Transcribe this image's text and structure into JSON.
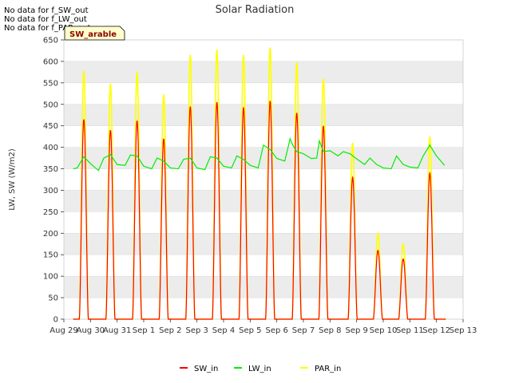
{
  "no_data_messages": [
    "No data for f_SW_out",
    "No data for f_LW_out",
    "No data for f_PAR_out"
  ],
  "badge": "SW_arable",
  "colors": {
    "SW_in": "#ff0000",
    "LW_in": "#00ee00",
    "PAR_in": "#ffff00",
    "band": "#ececec",
    "grid": "#dddddd"
  },
  "chart_data": {
    "type": "line",
    "title": "Solar Radiation",
    "xlabel": "",
    "ylabel": "LW, SW (W/m2)",
    "ylim": [
      0,
      650
    ],
    "yticks": [
      0,
      50,
      100,
      150,
      200,
      250,
      300,
      350,
      400,
      450,
      500,
      550,
      600,
      650
    ],
    "xlim": [
      0,
      15
    ],
    "xticks": [
      {
        "x": 0,
        "label": "Aug 29"
      },
      {
        "x": 1,
        "label": "Aug 30"
      },
      {
        "x": 2,
        "label": "Aug 31"
      },
      {
        "x": 3,
        "label": "Sep 1"
      },
      {
        "x": 4,
        "label": "Sep 2"
      },
      {
        "x": 5,
        "label": "Sep 3"
      },
      {
        "x": 6,
        "label": "Sep 4"
      },
      {
        "x": 7,
        "label": "Sep 5"
      },
      {
        "x": 8,
        "label": "Sep 6"
      },
      {
        "x": 9,
        "label": "Sep 7"
      },
      {
        "x": 10,
        "label": "Sep 8"
      },
      {
        "x": 11,
        "label": "Sep 9"
      },
      {
        "x": 12,
        "label": "Sep 10"
      },
      {
        "x": 13,
        "label": "Sep 11"
      },
      {
        "x": 14,
        "label": "Sep 12"
      },
      {
        "x": 15,
        "label": "Sep 13"
      }
    ],
    "data_range": [
      0.35,
      14.35
    ],
    "daily_peaks": [
      {
        "day": 0.75,
        "SW_in": 465,
        "PAR_in": 578
      },
      {
        "day": 1.75,
        "SW_in": 440,
        "PAR_in": 548
      },
      {
        "day": 2.75,
        "SW_in": 462,
        "PAR_in": 575
      },
      {
        "day": 3.75,
        "SW_in": 420,
        "PAR_in": 523
      },
      {
        "day": 4.75,
        "SW_in": 495,
        "PAR_in": 615
      },
      {
        "day": 5.75,
        "SW_in": 505,
        "PAR_in": 627
      },
      {
        "day": 6.75,
        "SW_in": 493,
        "PAR_in": 615
      },
      {
        "day": 7.75,
        "SW_in": 508,
        "PAR_in": 632
      },
      {
        "day": 8.75,
        "SW_in": 480,
        "PAR_in": 598
      },
      {
        "day": 9.75,
        "SW_in": 450,
        "PAR_in": 560
      },
      {
        "day": 10.85,
        "SW_in": 330,
        "PAR_in": 410
      },
      {
        "day": 11.8,
        "SW_in": 160,
        "PAR_in": 200
      },
      {
        "day": 12.75,
        "SW_in": 140,
        "PAR_in": 175
      },
      {
        "day": 13.75,
        "SW_in": 340,
        "PAR_in": 425
      }
    ],
    "series": [
      {
        "name": "SW_in",
        "color": "#ff0000"
      },
      {
        "name": "LW_in",
        "color": "#00ee00",
        "x": [
          0.35,
          0.5,
          0.75,
          1.0,
          1.3,
          1.5,
          1.75,
          2.0,
          2.3,
          2.5,
          2.75,
          3.0,
          3.3,
          3.5,
          3.75,
          4.0,
          4.3,
          4.5,
          4.75,
          5.0,
          5.3,
          5.5,
          5.75,
          6.0,
          6.3,
          6.5,
          6.75,
          7.0,
          7.3,
          7.5,
          7.75,
          8.0,
          8.3,
          8.5,
          8.6,
          8.75,
          9.0,
          9.3,
          9.5,
          9.6,
          9.75,
          10.0,
          10.3,
          10.5,
          10.75,
          11.0,
          11.3,
          11.5,
          11.75,
          12.0,
          12.3,
          12.5,
          12.75,
          13.0,
          13.3,
          13.5,
          13.75,
          14.0,
          14.3
        ],
        "values": [
          350,
          352,
          378,
          362,
          346,
          375,
          383,
          360,
          358,
          382,
          380,
          356,
          350,
          375,
          368,
          352,
          350,
          372,
          375,
          352,
          348,
          378,
          375,
          356,
          352,
          380,
          372,
          358,
          352,
          405,
          395,
          374,
          368,
          420,
          405,
          390,
          385,
          374,
          375,
          415,
          390,
          392,
          380,
          390,
          385,
          373,
          360,
          375,
          360,
          352,
          350,
          380,
          360,
          354,
          352,
          380,
          405,
          380,
          358
        ]
      },
      {
        "name": "PAR_in",
        "color": "#ffff00"
      }
    ],
    "legend": [
      "SW_in",
      "LW_in",
      "PAR_in"
    ],
    "legend_position": "bottom-center"
  }
}
